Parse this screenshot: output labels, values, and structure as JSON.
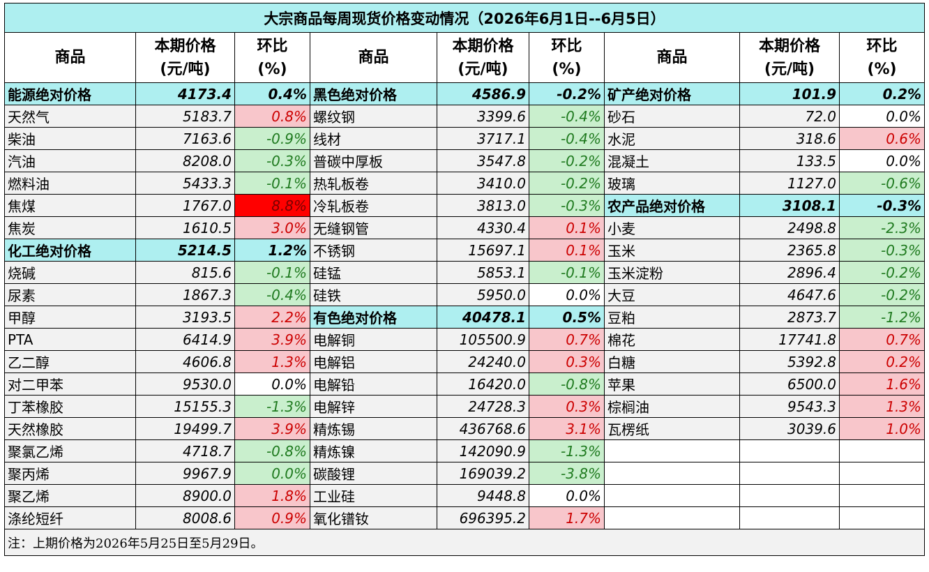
{
  "title": "大宗商品每周现货价格变动情况（2026年6月1日--6月5日）",
  "headers": {
    "name": "商品",
    "price_l1": "本期价格",
    "price_l2": "(元/吨)",
    "chg_l1": "环比",
    "chg_l2": "(%)"
  },
  "rows": [
    [
      {
        "n": "能源绝对价格",
        "p": "4173.4",
        "c": "0.4%",
        "t": "group"
      },
      {
        "n": "黑色绝对价格",
        "p": "4586.9",
        "c": "-0.2%",
        "t": "group"
      },
      {
        "n": "矿产绝对价格",
        "p": "101.9",
        "c": "0.2%",
        "t": "group"
      }
    ],
    [
      {
        "n": "天然气",
        "p": "5183.7",
        "c": "0.8%",
        "t": "up"
      },
      {
        "n": "螺纹钢",
        "p": "3399.6",
        "c": "-0.4%",
        "t": "down"
      },
      {
        "n": "砂石",
        "p": "72.0",
        "c": "0.0%",
        "t": "flat"
      }
    ],
    [
      {
        "n": "柴油",
        "p": "7163.6",
        "c": "-0.9%",
        "t": "down"
      },
      {
        "n": "线材",
        "p": "3717.1",
        "c": "-0.4%",
        "t": "down"
      },
      {
        "n": "水泥",
        "p": "318.6",
        "c": "0.6%",
        "t": "up"
      }
    ],
    [
      {
        "n": "汽油",
        "p": "8208.0",
        "c": "-0.3%",
        "t": "down"
      },
      {
        "n": "普碳中厚板",
        "p": "3547.8",
        "c": "-0.2%",
        "t": "down"
      },
      {
        "n": "混凝土",
        "p": "133.5",
        "c": "0.0%",
        "t": "flat"
      }
    ],
    [
      {
        "n": "燃料油",
        "p": "5433.3",
        "c": "-0.1%",
        "t": "down"
      },
      {
        "n": "热轧板卷",
        "p": "3410.0",
        "c": "-0.2%",
        "t": "down"
      },
      {
        "n": "玻璃",
        "p": "1127.0",
        "c": "-0.6%",
        "t": "down"
      }
    ],
    [
      {
        "n": "焦煤",
        "p": "1767.0",
        "c": "8.8%",
        "t": "hot"
      },
      {
        "n": "冷轧板卷",
        "p": "3813.0",
        "c": "-0.3%",
        "t": "down"
      },
      {
        "n": "农产品绝对价格",
        "p": "3108.1",
        "c": "-0.3%",
        "t": "group"
      }
    ],
    [
      {
        "n": "焦炭",
        "p": "1610.5",
        "c": "3.0%",
        "t": "up"
      },
      {
        "n": "无缝钢管",
        "p": "4330.4",
        "c": "0.1%",
        "t": "up"
      },
      {
        "n": "小麦",
        "p": "2498.8",
        "c": "-2.3%",
        "t": "down"
      }
    ],
    [
      {
        "n": "化工绝对价格",
        "p": "5214.5",
        "c": "1.2%",
        "t": "group"
      },
      {
        "n": "不锈钢",
        "p": "15697.1",
        "c": "0.1%",
        "t": "up"
      },
      {
        "n": "玉米",
        "p": "2365.8",
        "c": "-0.3%",
        "t": "down"
      }
    ],
    [
      {
        "n": "烧碱",
        "p": "815.6",
        "c": "-0.1%",
        "t": "down"
      },
      {
        "n": "硅锰",
        "p": "5853.1",
        "c": "-0.1%",
        "t": "down"
      },
      {
        "n": "玉米淀粉",
        "p": "2896.4",
        "c": "-0.2%",
        "t": "down"
      }
    ],
    [
      {
        "n": "尿素",
        "p": "1867.3",
        "c": "-0.4%",
        "t": "down"
      },
      {
        "n": "硅铁",
        "p": "5950.0",
        "c": "0.0%",
        "t": "flat"
      },
      {
        "n": "大豆",
        "p": "4647.6",
        "c": "-0.2%",
        "t": "down"
      }
    ],
    [
      {
        "n": "甲醇",
        "p": "3193.5",
        "c": "2.2%",
        "t": "up"
      },
      {
        "n": "有色绝对价格",
        "p": "40478.1",
        "c": "0.5%",
        "t": "group"
      },
      {
        "n": "豆粕",
        "p": "2873.7",
        "c": "-1.2%",
        "t": "down"
      }
    ],
    [
      {
        "n": "PTA",
        "p": "6414.9",
        "c": "3.9%",
        "t": "up"
      },
      {
        "n": "电解铜",
        "p": "105500.9",
        "c": "0.7%",
        "t": "up"
      },
      {
        "n": "棉花",
        "p": "17741.8",
        "c": "0.7%",
        "t": "up"
      }
    ],
    [
      {
        "n": "乙二醇",
        "p": "4606.8",
        "c": "1.3%",
        "t": "up"
      },
      {
        "n": "电解铝",
        "p": "24240.0",
        "c": "0.3%",
        "t": "up"
      },
      {
        "n": "白糖",
        "p": "5392.8",
        "c": "0.2%",
        "t": "up"
      }
    ],
    [
      {
        "n": "对二甲苯",
        "p": "9530.0",
        "c": "0.0%",
        "t": "flat"
      },
      {
        "n": "电解铅",
        "p": "16420.0",
        "c": "-0.8%",
        "t": "down"
      },
      {
        "n": "苹果",
        "p": "6500.0",
        "c": "1.6%",
        "t": "up"
      }
    ],
    [
      {
        "n": "丁苯橡胶",
        "p": "15155.3",
        "c": "-1.3%",
        "t": "down"
      },
      {
        "n": "电解锌",
        "p": "24728.3",
        "c": "0.3%",
        "t": "up"
      },
      {
        "n": "棕榈油",
        "p": "9543.3",
        "c": "1.3%",
        "t": "up"
      }
    ],
    [
      {
        "n": "天然橡胶",
        "p": "19499.7",
        "c": "3.9%",
        "t": "up"
      },
      {
        "n": "精炼锡",
        "p": "436768.6",
        "c": "3.1%",
        "t": "up"
      },
      {
        "n": "瓦楞纸",
        "p": "3039.6",
        "c": "1.0%",
        "t": "up"
      }
    ],
    [
      {
        "n": "聚氯乙烯",
        "p": "4718.7",
        "c": "-0.8%",
        "t": "down"
      },
      {
        "n": "精炼镍",
        "p": "142090.9",
        "c": "-1.3%",
        "t": "down"
      },
      {
        "n": "",
        "p": "",
        "c": "",
        "t": "empty"
      }
    ],
    [
      {
        "n": "聚丙烯",
        "p": "9967.9",
        "c": "0.0%",
        "t": "down"
      },
      {
        "n": "碳酸锂",
        "p": "169039.2",
        "c": "-3.8%",
        "t": "down"
      },
      {
        "n": "",
        "p": "",
        "c": "",
        "t": "empty"
      }
    ],
    [
      {
        "n": "聚乙烯",
        "p": "8900.0",
        "c": "1.8%",
        "t": "up"
      },
      {
        "n": "工业硅",
        "p": "9448.8",
        "c": "0.0%",
        "t": "flat"
      },
      {
        "n": "",
        "p": "",
        "c": "",
        "t": "empty"
      }
    ],
    [
      {
        "n": "涤纶短纤",
        "p": "8008.6",
        "c": "0.9%",
        "t": "up"
      },
      {
        "n": "氧化镨钕",
        "p": "696395.2",
        "c": "1.7%",
        "t": "up"
      },
      {
        "n": "",
        "p": "",
        "c": "",
        "t": "empty"
      }
    ]
  ],
  "note": "注：上期价格为2026年5月25日至5月29日。",
  "colors": {
    "group_bg": "#aeeff0",
    "up_bg": "#f8c6cb",
    "up_text": "#cc0000",
    "down_bg": "#c9efcd",
    "down_text": "#1f7a1f",
    "hot_bg": "#ff0000"
  }
}
